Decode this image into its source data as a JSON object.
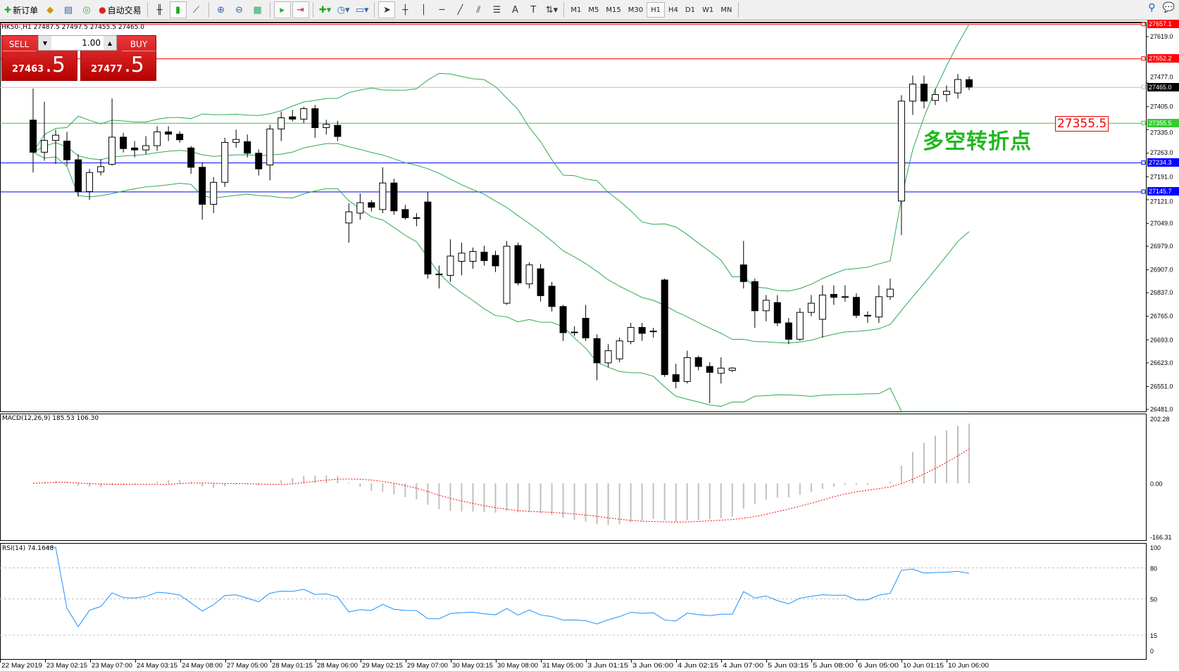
{
  "toolbar": {
    "new_order": "新订单",
    "auto_trading": "自动交易",
    "icons": [
      "new-order-icon",
      "market-watch-icon",
      "data-window-icon",
      "navigator-icon",
      "auto-trading-icon",
      "bar-chart-icon",
      "candlestick-icon",
      "line-chart-icon",
      "zoom-in-icon",
      "zoom-out-icon",
      "tile-windows-icon",
      "auto-scroll-icon",
      "chart-shift-icon",
      "indicators-icon",
      "periods-icon",
      "templates-icon",
      "cursor-icon",
      "crosshair-icon",
      "vertical-line-icon",
      "horizontal-line-icon",
      "trendline-icon",
      "equidistant-channel-icon",
      "fibonacci-icon",
      "text-icon",
      "text-label-icon",
      "arrows-icon"
    ],
    "timeframes": [
      "M1",
      "M5",
      "M15",
      "M30",
      "H1",
      "H4",
      "D1",
      "W1",
      "MN"
    ],
    "active_timeframe": "H1"
  },
  "chart": {
    "symbol_info": "HK50-,H1  27487.5 27497.5 27455.5 27465.0",
    "trade": {
      "sell_label": "SELL",
      "buy_label": "BUY",
      "lot": "1.00",
      "sell_main": "27463",
      "sell_frac": ".5",
      "buy_main": "27477",
      "buy_frac": ".5"
    },
    "price_ticks": [
      27619.0,
      27477.0,
      27405.0,
      27335.0,
      27263.0,
      27191.0,
      27121.0,
      27049.0,
      26979.0,
      26907.0,
      26837.0,
      26765.0,
      26693.0,
      26623.0,
      26551.0,
      26481.0
    ],
    "price_range": [
      26481.0,
      27619.0
    ],
    "hlines": [
      {
        "price": 27657.1,
        "label": "27657.1",
        "color": "#ff0000"
      },
      {
        "price": 27552.2,
        "label": "27552.2",
        "color": "#ff0000"
      },
      {
        "price": 27465.0,
        "label": "27465.0",
        "color": "#000000",
        "line": "#c0c0c0"
      },
      {
        "price": 27355.5,
        "label": "27355.5",
        "color": "#32cd32"
      },
      {
        "price": 27234.3,
        "label": "27234.3",
        "color": "#0000ff"
      },
      {
        "price": 27145.7,
        "label": "27145.7",
        "color": "#0000ff"
      }
    ],
    "annotation": "多空转折点",
    "annotation_label": "27355.5",
    "colors": {
      "bollinger": "#2eaa4f",
      "macd_hist": "#c0c0c0",
      "macd_signal": "#ff0000",
      "rsi": "#1e90ff"
    },
    "candles": [
      [
        27364,
        27460,
        27204,
        27266
      ],
      [
        27266,
        27420,
        27240,
        27302
      ],
      [
        27302,
        27335,
        27230,
        27318
      ],
      [
        27300,
        27328,
        27225,
        27243
      ],
      [
        27243,
        27260,
        27130,
        27146
      ],
      [
        27146,
        27215,
        27120,
        27204
      ],
      [
        27206,
        27245,
        27195,
        27222
      ],
      [
        27229,
        27430,
        27225,
        27312
      ],
      [
        27312,
        27325,
        27265,
        27277
      ],
      [
        27279,
        27300,
        27250,
        27273
      ],
      [
        27273,
        27315,
        27260,
        27286
      ],
      [
        27286,
        27345,
        27270,
        27328
      ],
      [
        27328,
        27345,
        27300,
        27321
      ],
      [
        27321,
        27330,
        27295,
        27304
      ],
      [
        27279,
        27285,
        27200,
        27220
      ],
      [
        27220,
        27235,
        27060,
        27107
      ],
      [
        27107,
        27190,
        27080,
        27174
      ],
      [
        27174,
        27310,
        27160,
        27296
      ],
      [
        27296,
        27335,
        27280,
        27305
      ],
      [
        27298,
        27320,
        27250,
        27263
      ],
      [
        27263,
        27275,
        27195,
        27215
      ],
      [
        27227,
        27350,
        27180,
        27337
      ],
      [
        27337,
        27390,
        27300,
        27371
      ],
      [
        27374,
        27395,
        27360,
        27367
      ],
      [
        27367,
        27405,
        27355,
        27399
      ],
      [
        27399,
        27410,
        27310,
        27341
      ],
      [
        27341,
        27365,
        27320,
        27351
      ],
      [
        27348,
        27362,
        27300,
        27314
      ],
      [
        27050,
        27110,
        26990,
        27084
      ],
      [
        27080,
        27140,
        27060,
        27112
      ],
      [
        27112,
        27120,
        27085,
        27098
      ],
      [
        27091,
        27220,
        27080,
        27172
      ],
      [
        27172,
        27185,
        27075,
        27087
      ],
      [
        27091,
        27105,
        27060,
        27066
      ],
      [
        27066,
        27080,
        27040,
        27064
      ],
      [
        27114,
        27145,
        26880,
        26894
      ],
      [
        26894,
        26920,
        26850,
        26892
      ],
      [
        26890,
        27000,
        26870,
        26949
      ],
      [
        26933,
        26990,
        26890,
        26958
      ],
      [
        26933,
        26975,
        26910,
        26963
      ],
      [
        26961,
        26980,
        26920,
        26935
      ],
      [
        26951,
        26965,
        26900,
        26919
      ],
      [
        26805,
        26995,
        26800,
        26979
      ],
      [
        26981,
        26990,
        26860,
        26867
      ],
      [
        26864,
        26930,
        26850,
        26922
      ],
      [
        26910,
        26925,
        26810,
        26828
      ],
      [
        26857,
        26870,
        26780,
        26795
      ],
      [
        26795,
        26800,
        26690,
        26715
      ],
      [
        26717,
        26735,
        26705,
        26717
      ],
      [
        26759,
        26800,
        26690,
        26699
      ],
      [
        26697,
        26710,
        26570,
        26623
      ],
      [
        26623,
        26680,
        26610,
        26660
      ],
      [
        26635,
        26700,
        26625,
        26690
      ],
      [
        26688,
        26745,
        26680,
        26731
      ],
      [
        26731,
        26745,
        26690,
        26713
      ],
      [
        26720,
        26730,
        26700,
        26720
      ],
      [
        26876,
        26880,
        26580,
        26587
      ],
      [
        26587,
        26620,
        26545,
        26566
      ],
      [
        26566,
        26660,
        26560,
        26639
      ],
      [
        26639,
        26645,
        26600,
        26612
      ],
      [
        26612,
        26625,
        26500,
        26594
      ],
      [
        26591,
        26640,
        26560,
        26607
      ],
      [
        26600,
        26610,
        26595,
        26607
      ],
      [
        26922,
        26995,
        26850,
        26871
      ],
      [
        26871,
        26880,
        26730,
        26782
      ],
      [
        26782,
        26830,
        26750,
        26814
      ],
      [
        26807,
        26830,
        26735,
        26745
      ],
      [
        26745,
        26760,
        26680,
        26695
      ],
      [
        26695,
        26790,
        26690,
        26777
      ],
      [
        26777,
        26830,
        26765,
        26805
      ],
      [
        26756,
        26860,
        26700,
        26830
      ],
      [
        26832,
        26860,
        26800,
        26823
      ],
      [
        26825,
        26860,
        26810,
        26825
      ],
      [
        26823,
        26835,
        26760,
        26768
      ],
      [
        26768,
        26780,
        26745,
        26768
      ],
      [
        26763,
        26860,
        26745,
        26825
      ],
      [
        26825,
        26880,
        26815,
        26848
      ],
      [
        27117,
        27440,
        27013,
        27422
      ],
      [
        27422,
        27500,
        27380,
        27474
      ],
      [
        27474,
        27500,
        27400,
        27422
      ],
      [
        27424,
        27460,
        27410,
        27442
      ],
      [
        27442,
        27470,
        27420,
        27452
      ],
      [
        27447,
        27505,
        27430,
        27488
      ],
      [
        27487.5,
        27497.5,
        27455.5,
        27465.0
      ]
    ]
  },
  "macd": {
    "label": "MACD(12,26,9) 185.53 106.30",
    "ticks": [
      "202.28",
      "0.00",
      "-166.31"
    ],
    "range": [
      -166.31,
      202.28
    ]
  },
  "rsi": {
    "label": "RSI(14) 74.1648",
    "ticks": [
      "100",
      "80",
      "50",
      "15",
      "0"
    ],
    "levels": [
      80,
      50,
      15
    ]
  },
  "time_labels": [
    "22 May 2019",
    "23 May 02:15",
    "23 May 07:00",
    "24 May 03:15",
    "24 May 08:00",
    "27 May 05:00",
    "28 May 01:15",
    "28 May 06:00",
    "29 May 02:15",
    "29 May 07:00",
    "30 May 03:15",
    "30 May 08:00",
    "31 May 05:00",
    "3 Jun 01:15",
    "3 Jun 06:00",
    "4 Jun 02:15",
    "4 Jun 07:00",
    "5 Jun 03:15",
    "5 Jun 08:00",
    "6 Jun 05:00",
    "10 Jun 01:15",
    "10 Jun 06:00"
  ]
}
